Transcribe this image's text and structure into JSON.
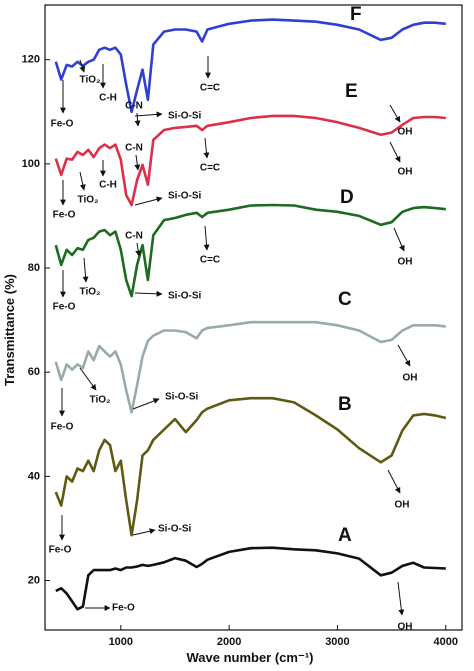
{
  "chart_data": {
    "type": "line",
    "xlabel": "Wave number (cm⁻¹)",
    "ylabel": "Transmittance (%)",
    "xlim": [
      300,
      4150
    ],
    "ylim": [
      10.5,
      130.5
    ],
    "xticks": [
      1000,
      2000,
      3000,
      4000
    ],
    "yticks": [
      20,
      40,
      60,
      80,
      100,
      120
    ],
    "x": [
      400,
      450,
      500,
      550,
      600,
      650,
      700,
      750,
      800,
      850,
      900,
      950,
      1000,
      1050,
      1100,
      1150,
      1200,
      1250,
      1300,
      1400,
      1500,
      1600,
      1700,
      1750,
      1800,
      2000,
      2200,
      2400,
      2600,
      2800,
      3000,
      3200,
      3400,
      3500,
      3600,
      3700,
      3800,
      3900,
      4000
    ],
    "series": [
      {
        "name": "A",
        "color": "#111111",
        "values": [
          18,
          18.5,
          17.5,
          16,
          14.5,
          15,
          21,
          22,
          22,
          22,
          22,
          22.3,
          22,
          22.5,
          22.5,
          22.7,
          23,
          22.8,
          23,
          23.5,
          24.3,
          23.8,
          22.6,
          23.2,
          24,
          25.5,
          26.2,
          26.3,
          26,
          25.8,
          25.2,
          24.2,
          21,
          21.5,
          22.8,
          23.4,
          22.5,
          22.4,
          22.3
        ]
      },
      {
        "name": "B",
        "color": "#5e5a12",
        "values": [
          37,
          34.4,
          40,
          39,
          41.5,
          41,
          43,
          41,
          45,
          47,
          46,
          41,
          43,
          35.4,
          28.7,
          35.4,
          44,
          45,
          47,
          49,
          51,
          48.5,
          50.8,
          52.3,
          53,
          54.6,
          55,
          55,
          54.2,
          51.7,
          49,
          45.4,
          42.7,
          44,
          48.8,
          51.7,
          52,
          51.7,
          51.2
        ]
      },
      {
        "name": "C",
        "color": "#9aaca2",
        "values": [
          62,
          58.5,
          61.5,
          60.5,
          61.5,
          60.8,
          64,
          62.3,
          65,
          64,
          63,
          64,
          61.5,
          56.5,
          52.3,
          57.5,
          63,
          66,
          67,
          68,
          68,
          67.7,
          66.5,
          68,
          68.5,
          69,
          69.6,
          69.6,
          69.6,
          69.6,
          69,
          68,
          65.8,
          66.2,
          68,
          69,
          69,
          69,
          68.8
        ]
      },
      {
        "name": "D",
        "color": "#1d6b20",
        "values": [
          84.4,
          80.6,
          83.5,
          82.5,
          83.8,
          83.5,
          85.4,
          85.8,
          87,
          87.3,
          86.3,
          87,
          83.5,
          77.7,
          74.6,
          80.6,
          84.4,
          77.7,
          86.3,
          89.2,
          89.6,
          90.2,
          90.6,
          89.8,
          90.6,
          91.2,
          92,
          92.1,
          92,
          91.2,
          90.8,
          90,
          88.3,
          88.8,
          90.8,
          91.5,
          91.7,
          91.5,
          91.3
        ]
      },
      {
        "name": "E",
        "color": "#dc3049",
        "values": [
          101,
          97.9,
          101,
          100.8,
          102.3,
          101.7,
          102.7,
          101.3,
          103,
          103.7,
          103,
          103.7,
          100.8,
          94,
          92.1,
          96.9,
          99.8,
          96,
          104.6,
          106.5,
          106.9,
          107.1,
          107.3,
          106.5,
          107.3,
          108,
          108.8,
          109.2,
          109.2,
          108.8,
          108,
          106.9,
          105.6,
          106,
          107.5,
          108.8,
          109,
          109,
          108.8
        ]
      },
      {
        "name": "F",
        "color": "#2f3fd4",
        "values": [
          119.6,
          116.2,
          119,
          118.7,
          119.6,
          118.8,
          119.6,
          120,
          121.9,
          122.3,
          121.9,
          122.3,
          121,
          115.2,
          110,
          114.2,
          118.1,
          112.3,
          122.9,
          125.4,
          125.8,
          125.8,
          125.4,
          123.5,
          125.8,
          126.9,
          127.5,
          127.7,
          127.5,
          127.3,
          126.7,
          125.8,
          123.8,
          124.2,
          125.8,
          126.7,
          127.1,
          127.1,
          126.9
        ]
      }
    ],
    "annotations": [
      "C-N",
      "C-H",
      "TiO₂",
      "Fe-O",
      "Si-O-Si",
      "C=C",
      "OH",
      "C-N",
      "C-H",
      "TiO₂",
      "Fe-O",
      "Si-O-Si",
      "C=C",
      "OH",
      "C-N",
      "TiO₂",
      "Fe-O",
      "Si-O-Si",
      "C=C",
      "OH",
      "TiO₂",
      "Fe-O",
      "Si-O-Si",
      "OH",
      "Si-O-Si",
      "Fe-O",
      "OH",
      "Fe-O",
      "OH"
    ]
  }
}
